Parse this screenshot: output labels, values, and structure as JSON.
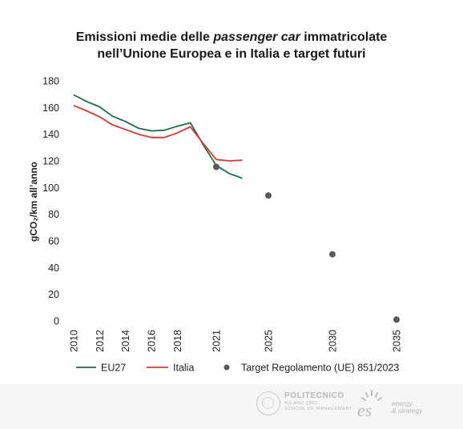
{
  "title": {
    "line1_pre": "Emissioni medie delle ",
    "line1_em": "passenger car",
    "line1_post": " immatricolate",
    "line2": "nell’Unione Europea e in Italia e target futuri"
  },
  "chart_data": {
    "type": "line",
    "ylabel": "gCO₂/km all’anno",
    "ylim": [
      0,
      180
    ],
    "yticks": [
      0,
      20,
      40,
      60,
      80,
      100,
      120,
      140,
      160,
      180
    ],
    "xticks": [
      "2010",
      "2012",
      "2014",
      "2016",
      "2018",
      "2021",
      "2025",
      "2030",
      "2035"
    ],
    "grid": false,
    "legend_position": "bottom",
    "series": [
      {
        "name": "EU27",
        "color": "#1f6b47",
        "style": "line",
        "x": [
          2010,
          2011,
          2012,
          2013,
          2014,
          2015,
          2016,
          2017,
          2018,
          2019,
          2020,
          2021,
          2022,
          2023
        ],
        "values": [
          169.5,
          164.5,
          160.5,
          153.5,
          149.5,
          144.5,
          142.5,
          143.0,
          146.0,
          148.5,
          132.0,
          116.5,
          110.5,
          107.0
        ]
      },
      {
        "name": "Italia",
        "color": "#d63a3a",
        "style": "line",
        "x": [
          2010,
          2011,
          2012,
          2013,
          2014,
          2015,
          2016,
          2017,
          2018,
          2019,
          2020,
          2021,
          2022,
          2023
        ],
        "values": [
          161.5,
          157.5,
          153.0,
          147.0,
          143.5,
          140.0,
          137.5,
          137.5,
          141.0,
          145.5,
          133.0,
          121.0,
          120.0,
          120.5
        ]
      },
      {
        "name": "Target Regolamento (UE) 851/2023",
        "color": "#595959",
        "style": "marker",
        "x": [
          2021,
          2025,
          2030,
          2035
        ],
        "values": [
          115.5,
          94.0,
          50.0,
          1.0
        ]
      }
    ]
  },
  "footer": {
    "polimi_name": "POLITECNICO",
    "polimi_line2": "MILANO 1863",
    "polimi_line3": "SCHOOL OF MANAGEMENT",
    "es_mark": "es",
    "es_line1": "energy",
    "es_line2": "& strategy"
  }
}
